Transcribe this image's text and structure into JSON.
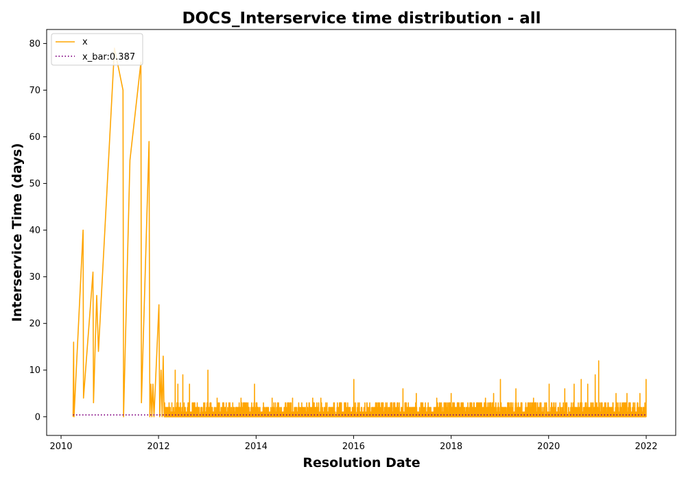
{
  "chart_data": {
    "type": "line",
    "title": "DOCS_Interservice time distribution - all",
    "xlabel": "Resolution Date",
    "ylabel": "Interservice Time (days)",
    "xlim": [
      "2009-09-15",
      "2022-08-10"
    ],
    "ylim": [
      -4,
      83
    ],
    "x_ticks": [
      "2010",
      "2012",
      "2014",
      "2016",
      "2018",
      "2020",
      "2022"
    ],
    "y_ticks": [
      0,
      10,
      20,
      30,
      40,
      50,
      60,
      70,
      80
    ],
    "grid": false,
    "legend_position": "top-left",
    "series": [
      {
        "name": "x",
        "color": "#ffa500",
        "style": "solid",
        "points": [
          [
            "2010-04-01",
            0
          ],
          [
            "2010-04-05",
            16
          ],
          [
            "2010-04-08",
            0
          ],
          [
            "2010-06-15",
            40
          ],
          [
            "2010-06-18",
            4
          ],
          [
            "2010-08-28",
            31
          ],
          [
            "2010-09-01",
            3
          ],
          [
            "2010-09-25",
            26
          ],
          [
            "2010-10-08",
            14
          ],
          [
            "2011-02-05",
            79
          ],
          [
            "2011-04-10",
            70
          ],
          [
            "2011-04-14",
            0
          ],
          [
            "2011-06-01",
            55
          ],
          [
            "2011-08-22",
            76
          ],
          [
            "2011-08-26",
            3
          ],
          [
            "2011-10-22",
            59
          ],
          [
            "2011-10-28",
            0
          ],
          [
            "2011-11-05",
            7
          ],
          [
            "2011-11-12",
            0
          ],
          [
            "2011-11-20",
            7
          ],
          [
            "2011-11-28",
            0
          ],
          [
            "2012-01-04",
            24
          ],
          [
            "2012-01-10",
            0
          ],
          [
            "2012-01-20",
            10
          ],
          [
            "2012-01-28",
            0
          ],
          [
            "2012-02-05",
            13
          ],
          [
            "2012-02-12",
            0
          ]
        ]
      },
      {
        "name": "x_bar:0.387",
        "color": "#800080",
        "style": "dotted",
        "points": [
          [
            "2010-04-01",
            0.387
          ],
          [
            "2021-12-31",
            0.387
          ]
        ]
      }
    ],
    "dense_segment": {
      "series": "x",
      "x_range": [
        "2012-02-12",
        "2021-12-31"
      ],
      "baseline": 0,
      "typical_max": 3,
      "spikes": [
        [
          "2012-05-05",
          10
        ],
        [
          "2012-05-25",
          7
        ],
        [
          "2012-07-01",
          9
        ],
        [
          "2012-08-20",
          7
        ],
        [
          "2013-01-05",
          10
        ],
        [
          "2013-03-15",
          4
        ],
        [
          "2013-09-10",
          4
        ],
        [
          "2013-12-20",
          7
        ],
        [
          "2014-05-01",
          4
        ],
        [
          "2014-10-01",
          4
        ],
        [
          "2015-03-01",
          4
        ],
        [
          "2015-05-01",
          4
        ],
        [
          "2016-01-03",
          8
        ],
        [
          "2016-06-15",
          3
        ],
        [
          "2017-01-05",
          6
        ],
        [
          "2017-04-15",
          5
        ],
        [
          "2017-09-15",
          4
        ],
        [
          "2018-01-01",
          5
        ],
        [
          "2018-09-15",
          4
        ],
        [
          "2018-11-15",
          5
        ],
        [
          "2019-01-05",
          8
        ],
        [
          "2019-05-01",
          6
        ],
        [
          "2019-09-10",
          4
        ],
        [
          "2020-01-05",
          7
        ],
        [
          "2020-05-01",
          6
        ],
        [
          "2020-07-10",
          7
        ],
        [
          "2020-09-01",
          8
        ],
        [
          "2020-10-20",
          7
        ],
        [
          "2020-12-15",
          9
        ],
        [
          "2021-01-10",
          12
        ],
        [
          "2021-05-20",
          5
        ],
        [
          "2021-08-10",
          5
        ],
        [
          "2021-11-15",
          5
        ],
        [
          "2021-12-31",
          8
        ]
      ]
    }
  }
}
